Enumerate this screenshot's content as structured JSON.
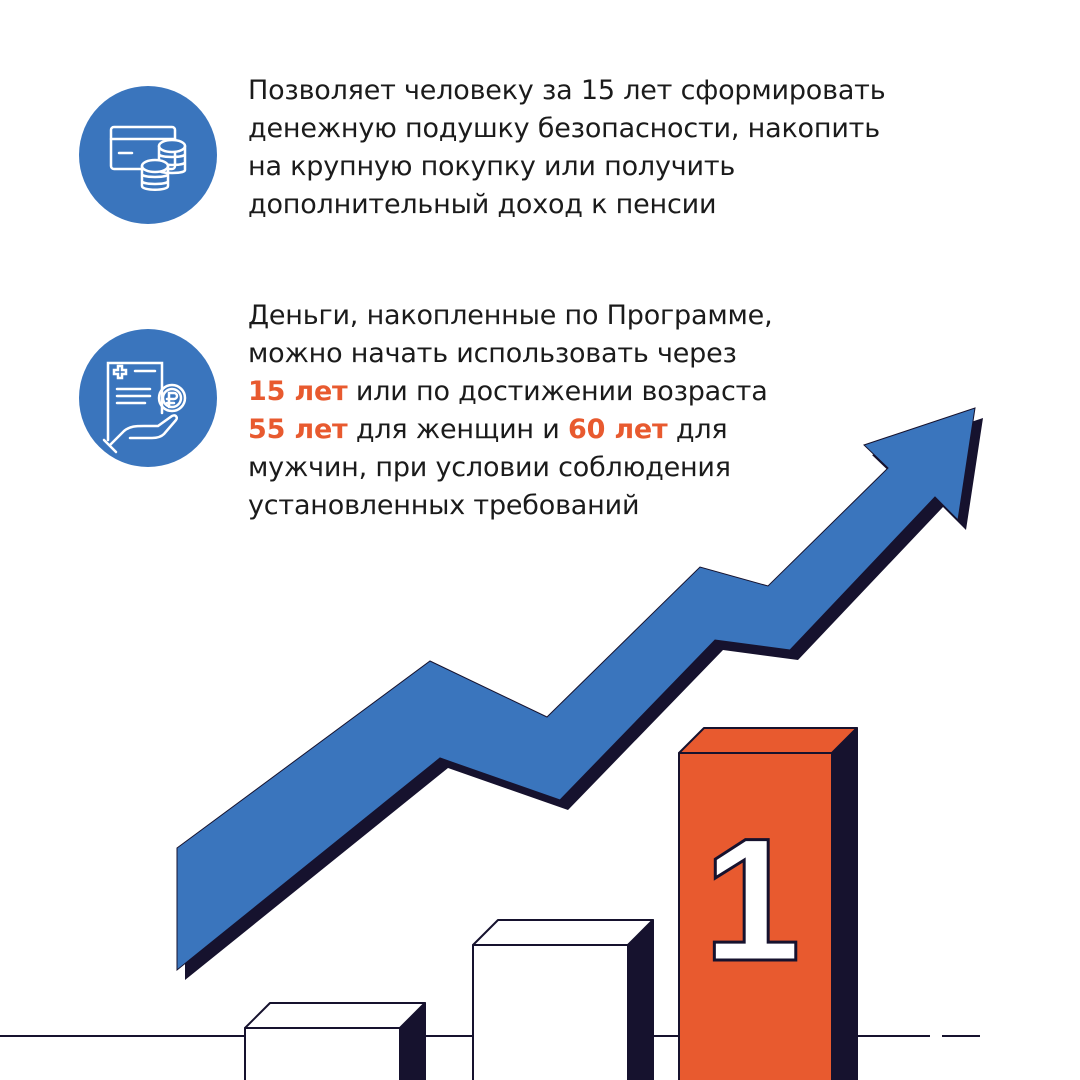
{
  "colors": {
    "blue": "#3a75bd",
    "orange": "#e85a2f",
    "navy": "#16122e",
    "text": "#1b1b1b"
  },
  "items": [
    {
      "icon": "card-coins-icon",
      "lines": [
        "Позволяет человеку за 15 лет сформировать",
        "денежную подушку безопасности, накопить",
        "на крупную покупку или получить",
        "дополнительный доход к пенсии"
      ]
    },
    {
      "icon": "document-hand-ruble-icon",
      "line1": "Деньги, накопленные по Программе,",
      "line2": "можно начать использовать через",
      "line3_hl": "15 лет",
      "line3_rest": " или по достижении возраста",
      "line4_hl1": "55 лет",
      "line4_mid": " для женщин и ",
      "line4_hl2": "60 лет",
      "line4_rest": " для",
      "line5": "мужчин, при условии соблюдения",
      "line6": "установленных требований"
    }
  ],
  "illustration": {
    "highlight_bar_label": "1",
    "arrow_icon": "growth-arrow-icon"
  }
}
